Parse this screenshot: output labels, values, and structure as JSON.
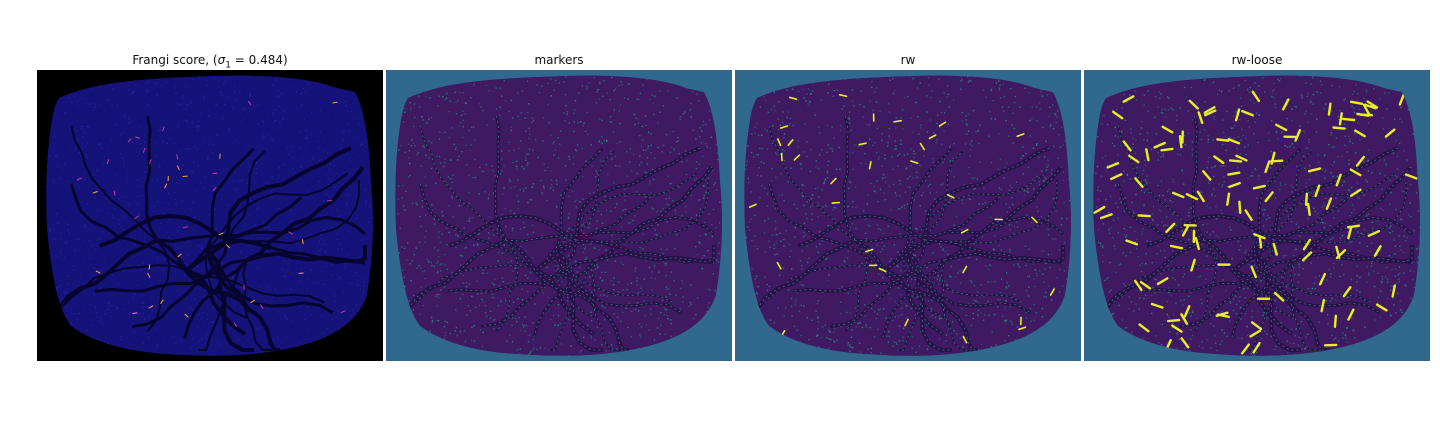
{
  "figure": {
    "panels": [
      {
        "title_prefix": "Frangi score, (",
        "title_sigma": "σ",
        "title_sub": "1",
        "title_suffix": " = 0.484)",
        "colormap": "gnuplot2",
        "background": "#000000",
        "base_color": "#15127a",
        "vessel_color": "#05052e",
        "highlight_colors": [
          "#c03aa5",
          "#f7a63c"
        ]
      },
      {
        "title": "markers",
        "colormap": "viridis",
        "background": "#31688e",
        "base_color": "#3f1a62",
        "vessel_color": "#2b0f4a",
        "marker_color": "#22a884"
      },
      {
        "title": "rw",
        "colormap": "viridis",
        "background": "#31688e",
        "base_color": "#3f1a62",
        "vessel_color": "#2b0f4a",
        "marker_color": "#22a884",
        "highlight_color": "#e8f020"
      },
      {
        "title": "rw-loose",
        "colormap": "viridis",
        "background": "#31688e",
        "base_color": "#3f1a62",
        "vessel_color": "#2b0f4a",
        "marker_color": "#22a884",
        "highlight_color": "#e8f020"
      }
    ]
  }
}
